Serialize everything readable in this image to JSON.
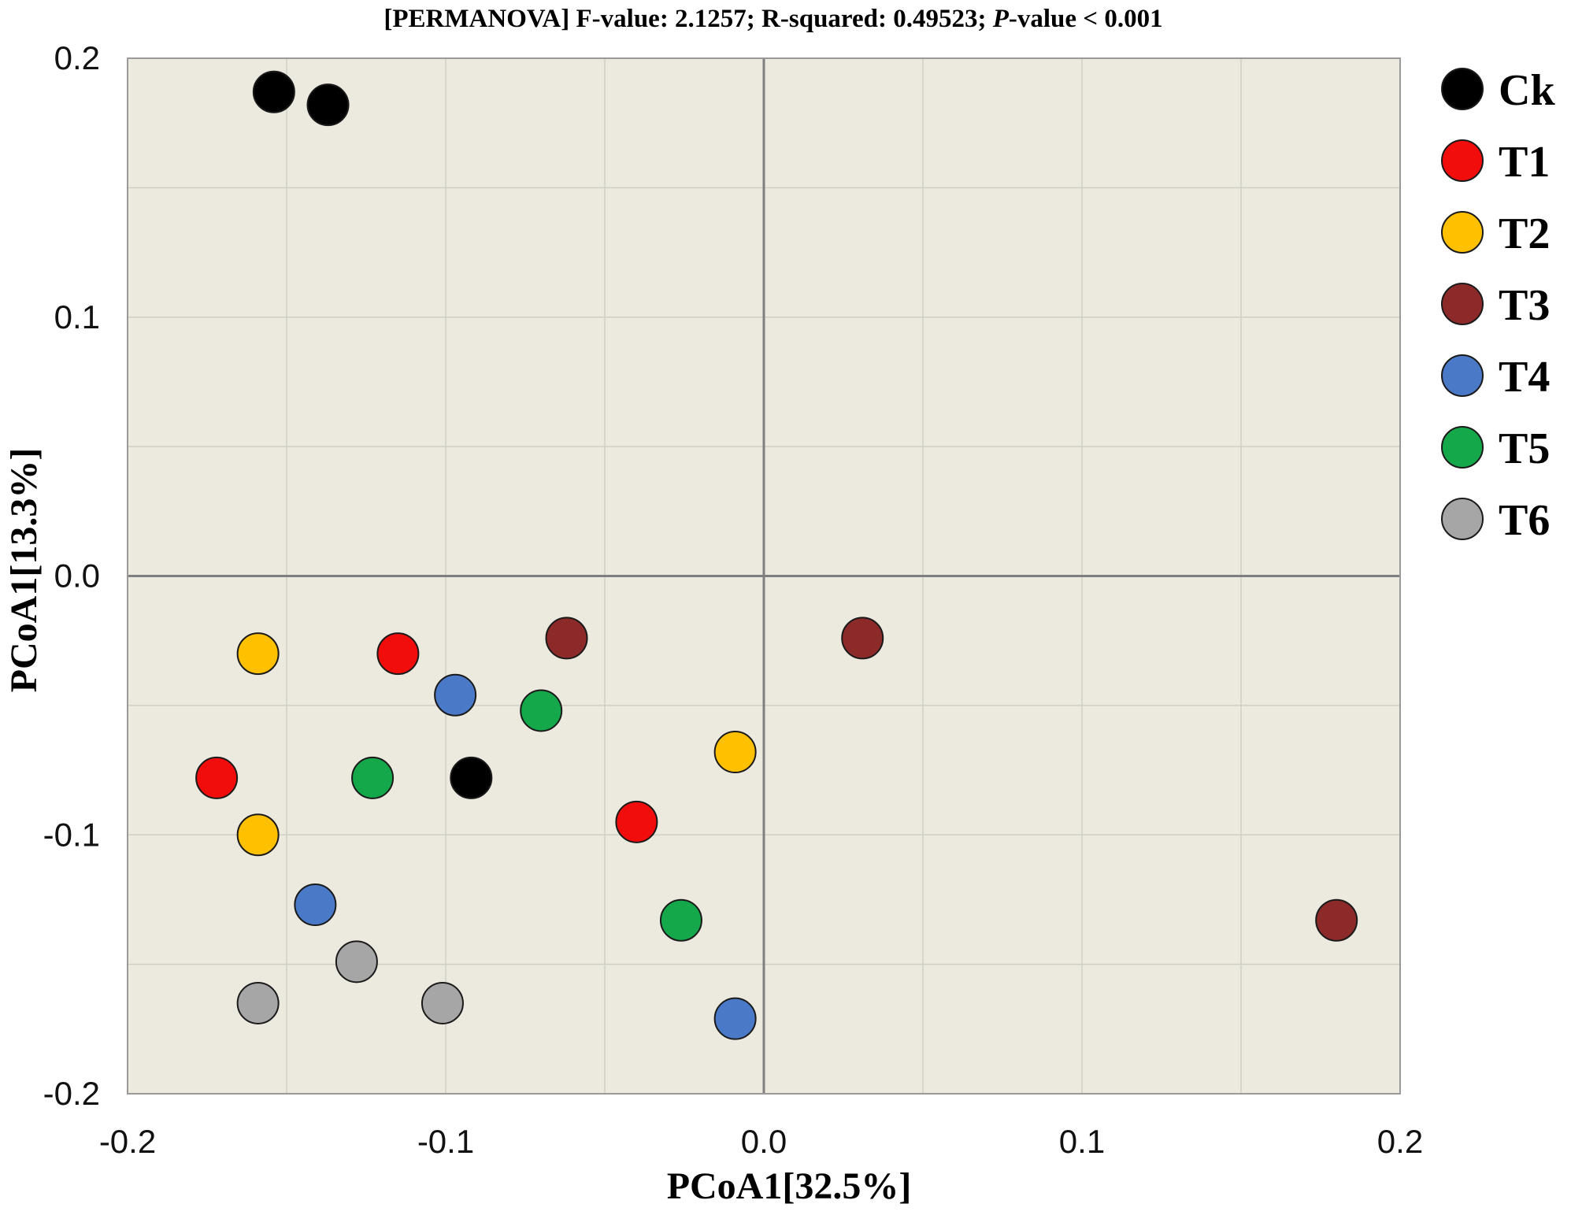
{
  "chart_data": {
    "type": "scatter",
    "title": {
      "prefix": "[PERMANOVA] F-value: 2.1257; R-squared: 0.49523; ",
      "italic": "P",
      "suffix": "-value < 0.001"
    },
    "xlabel": "PCoA1[32.5%]",
    "ylabel": "PCoA1[13.3%]",
    "xlim": [
      -0.2,
      0.2
    ],
    "ylim": [
      -0.2,
      0.2
    ],
    "xticks": [
      -0.2,
      -0.1,
      0.0,
      0.1,
      0.2
    ],
    "xtick_labels": [
      "-0.2",
      "-0.1",
      "0.0",
      "0.1",
      "0.2"
    ],
    "yticks": [
      0.2,
      0.1,
      0.0,
      -0.1,
      -0.2
    ],
    "ytick_labels": [
      "0.2",
      "0.1",
      "0.0",
      "-0.1",
      "-0.2"
    ],
    "minor_grid_step": 0.05,
    "grid": true,
    "background_color": "#ECE9DF",
    "legend_position": "right",
    "series": [
      {
        "name": "Ck",
        "color": "#000000",
        "points": [
          [
            -0.154,
            0.187
          ],
          [
            -0.137,
            0.182
          ],
          [
            -0.092,
            -0.078
          ]
        ]
      },
      {
        "name": "T1",
        "color": "#F20D0D",
        "points": [
          [
            -0.115,
            -0.03
          ],
          [
            -0.172,
            -0.078
          ],
          [
            -0.04,
            -0.095
          ]
        ]
      },
      {
        "name": "T2",
        "color": "#FFC000",
        "points": [
          [
            -0.159,
            -0.03
          ],
          [
            -0.159,
            -0.1
          ],
          [
            -0.009,
            -0.068
          ]
        ]
      },
      {
        "name": "T3",
        "color": "#8C2A2A",
        "points": [
          [
            -0.062,
            -0.024
          ],
          [
            0.031,
            -0.024
          ],
          [
            0.18,
            -0.133
          ]
        ]
      },
      {
        "name": "T4",
        "color": "#4A7AC7",
        "points": [
          [
            -0.097,
            -0.046
          ],
          [
            -0.141,
            -0.127
          ],
          [
            -0.009,
            -0.171
          ]
        ]
      },
      {
        "name": "T5",
        "color": "#14A84A",
        "points": [
          [
            -0.07,
            -0.052
          ],
          [
            -0.123,
            -0.078
          ],
          [
            -0.026,
            -0.133
          ]
        ]
      },
      {
        "name": "T6",
        "color": "#A6A6A6",
        "points": [
          [
            -0.128,
            -0.149
          ],
          [
            -0.159,
            -0.165
          ],
          [
            -0.101,
            -0.165
          ]
        ]
      }
    ]
  }
}
